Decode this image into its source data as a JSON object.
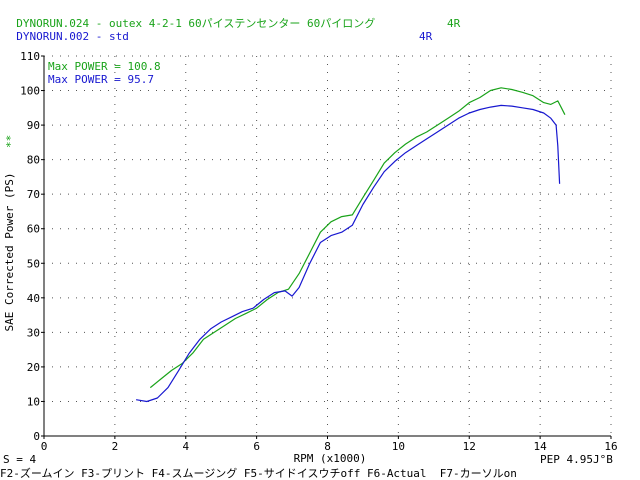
{
  "header": {
    "line1_name": "DYNORUN.024 - outex 4-2-1 60パイステンセンター 60パイロング",
    "line1_gear": "4R",
    "line2_name": "DYNORUN.002 - std",
    "line2_gear": "4R"
  },
  "annotations": {
    "max_green": "Max POWER = 100.8",
    "max_blue": "Max POWER = 95.7",
    "marker": "**"
  },
  "status": {
    "left": "S = 4",
    "right": "PEP 4.95J°B",
    "fkeys": "F2-ズームイン F3-プリント F4-スムージング F5-サイドイスウチoff F6-Actual  F7-カーソルon"
  },
  "colors": {
    "green": "#1aa31a",
    "blue": "#1818d0",
    "axis": "#000000"
  },
  "chart_data": {
    "type": "line",
    "xlabel": "RPM (x1000)",
    "ylabel": "SAE Corrected Power (PS)",
    "xlim": [
      0,
      16
    ],
    "ylim": [
      0,
      110
    ],
    "xticks": [
      0,
      2,
      4,
      6,
      8,
      10,
      12,
      14,
      16
    ],
    "yticks": [
      0,
      10,
      20,
      30,
      40,
      50,
      60,
      70,
      80,
      90,
      100,
      110
    ],
    "grid": "dotted",
    "series": [
      {
        "name": "DYNORUN.024",
        "color": "#1aa31a",
        "x": [
          3.0,
          3.3,
          3.6,
          3.9,
          4.2,
          4.5,
          4.8,
          5.1,
          5.4,
          5.7,
          6.0,
          6.3,
          6.6,
          6.9,
          7.2,
          7.5,
          7.8,
          8.1,
          8.4,
          8.7,
          9.0,
          9.3,
          9.6,
          9.9,
          10.2,
          10.5,
          10.8,
          11.1,
          11.4,
          11.7,
          12.0,
          12.3,
          12.6,
          12.9,
          13.2,
          13.5,
          13.8,
          14.1,
          14.3,
          14.5,
          14.6,
          14.7
        ],
        "y": [
          14,
          16.5,
          19,
          21,
          24,
          28,
          30,
          32,
          34,
          35.5,
          37,
          39.5,
          41.5,
          42.5,
          47,
          53,
          59,
          62,
          63.5,
          64,
          69,
          74,
          79,
          82,
          84.5,
          86.5,
          88,
          90,
          92,
          94,
          96.5,
          98,
          100,
          100.8,
          100.3,
          99.5,
          98.5,
          96.5,
          96,
          97,
          95,
          93
        ]
      },
      {
        "name": "DYNORUN.002",
        "color": "#1818d0",
        "x": [
          2.6,
          2.9,
          3.2,
          3.5,
          3.8,
          4.1,
          4.4,
          4.7,
          5.0,
          5.3,
          5.6,
          5.9,
          6.2,
          6.5,
          6.8,
          7.0,
          7.2,
          7.5,
          7.8,
          8.1,
          8.4,
          8.7,
          9.0,
          9.3,
          9.6,
          9.9,
          10.2,
          10.5,
          10.8,
          11.1,
          11.4,
          11.7,
          12.0,
          12.3,
          12.6,
          12.9,
          13.2,
          13.5,
          13.8,
          14.1,
          14.3,
          14.45,
          14.5,
          14.55
        ],
        "y": [
          10.5,
          10,
          11,
          14,
          19,
          24,
          28,
          31,
          33,
          34.5,
          36,
          37,
          39.5,
          41.5,
          42,
          40.5,
          43,
          50,
          56,
          58,
          59,
          61,
          67,
          72,
          76.5,
          79.5,
          82,
          84,
          86,
          88,
          90,
          92,
          93.5,
          94.5,
          95.2,
          95.7,
          95.5,
          95,
          94.5,
          93.5,
          92,
          90,
          84,
          73
        ]
      }
    ]
  }
}
